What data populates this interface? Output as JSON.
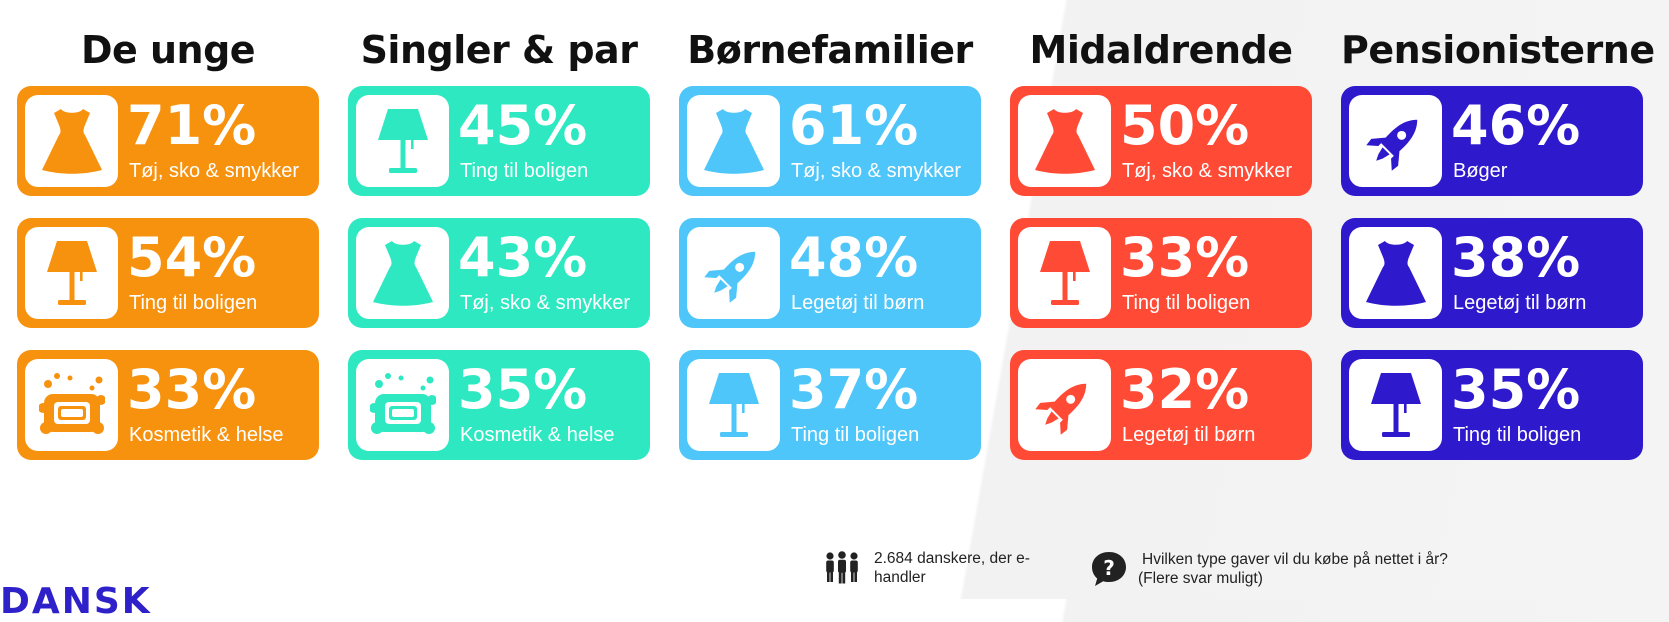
{
  "colors": {
    "orange": "#f7920f",
    "teal": "#2ee8c2",
    "sky": "#4fc6f9",
    "red": "#ff4b36",
    "indigo": "#2f19cc"
  },
  "columns": [
    {
      "title": "De unge",
      "color": "#f7920f",
      "cards": [
        {
          "icon": "dress-icon",
          "percent": "71%",
          "label": "Tøj, sko & smykker"
        },
        {
          "icon": "lamp-icon",
          "percent": "54%",
          "label": "Ting til boligen"
        },
        {
          "icon": "soap-icon",
          "percent": "33%",
          "label": "Kosmetik & helse"
        }
      ]
    },
    {
      "title": "Singler & par",
      "color": "#2ee8c2",
      "cards": [
        {
          "icon": "lamp-icon",
          "percent": "45%",
          "label": "Ting til boligen"
        },
        {
          "icon": "dress-icon",
          "percent": "43%",
          "label": "Tøj, sko & smykker"
        },
        {
          "icon": "soap-icon",
          "percent": "35%",
          "label": "Kosmetik & helse"
        }
      ]
    },
    {
      "title": "Børnefamilier",
      "color": "#4fc6f9",
      "cards": [
        {
          "icon": "dress-icon",
          "percent": "61%",
          "label": "Tøj, sko & smykker"
        },
        {
          "icon": "rocket-icon",
          "percent": "48%",
          "label": "Legetøj til børn"
        },
        {
          "icon": "lamp-icon",
          "percent": "37%",
          "label": "Ting til boligen"
        }
      ]
    },
    {
      "title": "Midaldrende",
      "color": "#ff4b36",
      "cards": [
        {
          "icon": "dress-icon",
          "percent": "50%",
          "label": "Tøj, sko & smykker"
        },
        {
          "icon": "lamp-icon",
          "percent": "33%",
          "label": "Ting til boligen"
        },
        {
          "icon": "rocket-icon",
          "percent": "32%",
          "label": "Legetøj til børn"
        }
      ]
    },
    {
      "title": "Pensionisterne",
      "color": "#2f19cc",
      "cards": [
        {
          "icon": "rocket-icon",
          "percent": "46%",
          "label": "Bøger"
        },
        {
          "icon": "dress-icon",
          "percent": "38%",
          "label": "Legetøj til børn"
        },
        {
          "icon": "lamp-icon",
          "percent": "35%",
          "label": "Ting til boligen"
        }
      ]
    }
  ],
  "footer": {
    "respondents": {
      "icon": "people-icon",
      "text_line1": "2.684 danskere, der e-",
      "text_line2": "handler"
    },
    "question": {
      "icon": "speech-question-icon",
      "text_line1": "Hvilken type gaver vil du købe på nettet i år?",
      "text_line2": "(Flere svar muligt)"
    }
  },
  "brand": {
    "text": "DANSK"
  }
}
